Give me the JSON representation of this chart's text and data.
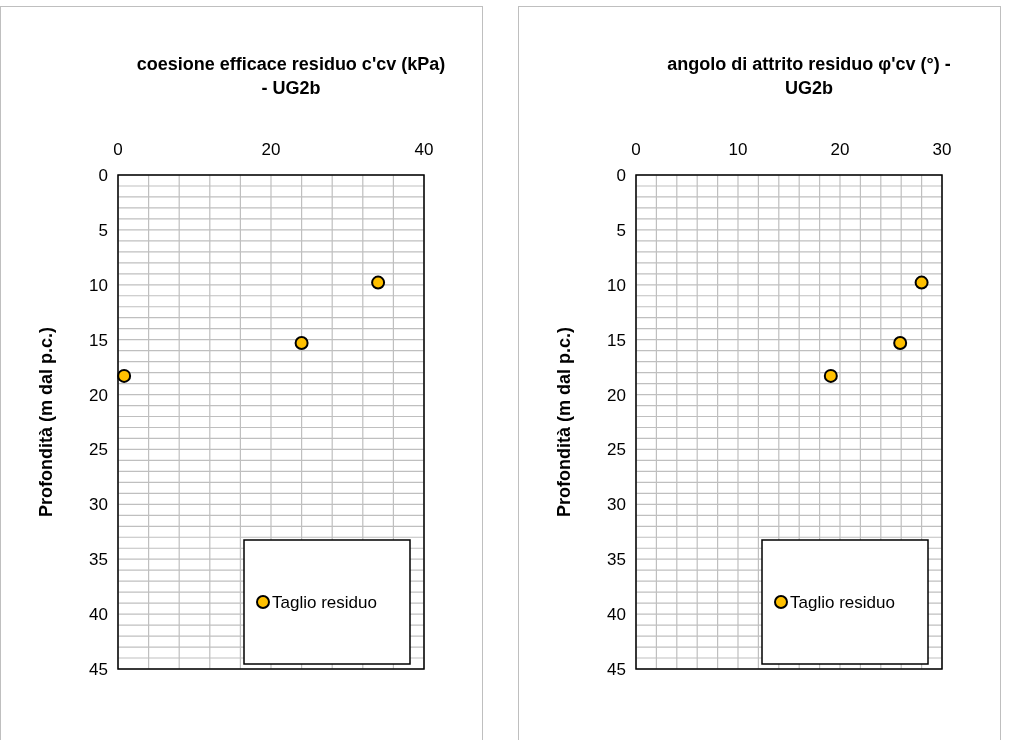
{
  "chart_data": [
    {
      "type": "scatter",
      "title": "coesione efficace residuo c'cv (kPa)\n- UG2b",
      "ylabel": "Profondità (m dal p.c.)",
      "series": [
        {
          "name": "Taglio residuo",
          "color": "#ffc000",
          "x": [
            34.0,
            24.0,
            0.8
          ],
          "values": [
            9.8,
            15.3,
            18.3
          ]
        }
      ],
      "xlim": [
        0,
        40
      ],
      "xticks": [
        0,
        {
          "value": 4,
          "label": null
        },
        {
          "value": 8,
          "label": null
        },
        {
          "value": 12,
          "label": null
        },
        {
          "value": 16,
          "label": null
        },
        20,
        {
          "value": 24,
          "label": null
        },
        {
          "value": 28,
          "label": null
        },
        {
          "value": 32,
          "label": null
        },
        {
          "value": 36,
          "label": null
        },
        40
      ],
      "ylim": [
        45,
        0
      ],
      "yticks": [
        0,
        {
          "value": 1,
          "label": null
        },
        {
          "value": 2,
          "label": null
        },
        {
          "value": 3,
          "label": null
        },
        {
          "value": 4,
          "label": null
        },
        5,
        {
          "value": 6,
          "label": null
        },
        {
          "value": 7,
          "label": null
        },
        {
          "value": 8,
          "label": null
        },
        {
          "value": 9,
          "label": null
        },
        10,
        {
          "value": 11,
          "label": null
        },
        {
          "value": 12,
          "label": null
        },
        {
          "value": 13,
          "label": null
        },
        {
          "value": 14,
          "label": null
        },
        15,
        {
          "value": 16,
          "label": null
        },
        {
          "value": 17,
          "label": null
        },
        {
          "value": 18,
          "label": null
        },
        {
          "value": 19,
          "label": null
        },
        20,
        {
          "value": 21,
          "label": null
        },
        {
          "value": 22,
          "label": null
        },
        {
          "value": 23,
          "label": null
        },
        {
          "value": 24,
          "label": null
        },
        25,
        {
          "value": 26,
          "label": null
        },
        {
          "value": 27,
          "label": null
        },
        {
          "value": 28,
          "label": null
        },
        {
          "value": 29,
          "label": null
        },
        30,
        {
          "value": 31,
          "label": null
        },
        {
          "value": 32,
          "label": null
        },
        {
          "value": 33,
          "label": null
        },
        {
          "value": 34,
          "label": null
        },
        35,
        {
          "value": 36,
          "label": null
        },
        {
          "value": 37,
          "label": null
        },
        {
          "value": 38,
          "label": null
        },
        {
          "value": 39,
          "label": null
        },
        40,
        {
          "value": 41,
          "label": null
        },
        {
          "value": 42,
          "label": null
        },
        {
          "value": 43,
          "label": null
        },
        {
          "value": 44,
          "label": null
        },
        45
      ],
      "grid": true,
      "legend": "bottom right",
      "marker": "circle"
    },
    {
      "type": "scatter",
      "title": "angolo di attrito residuo φ'cv (°) -\nUG2b",
      "ylabel": "Profondità (m dal p.c.)",
      "series": [
        {
          "name": "Taglio residuo",
          "color": "#ffc000",
          "x": [
            28.0,
            25.9,
            19.1
          ],
          "values": [
            9.8,
            15.3,
            18.3
          ]
        }
      ],
      "xlim": [
        0,
        30
      ],
      "xticks": [
        0,
        {
          "value": 2,
          "label": null
        },
        {
          "value": 4,
          "label": null
        },
        {
          "value": 6,
          "label": null
        },
        {
          "value": 8,
          "label": null
        },
        10,
        {
          "value": 12,
          "label": null
        },
        {
          "value": 14,
          "label": null
        },
        {
          "value": 16,
          "label": null
        },
        {
          "value": 18,
          "label": null
        },
        20,
        {
          "value": 22,
          "label": null
        },
        {
          "value": 24,
          "label": null
        },
        {
          "value": 26,
          "label": null
        },
        {
          "value": 28,
          "label": null
        },
        30
      ],
      "ylim": [
        45,
        0
      ],
      "yticks": [
        0,
        {
          "value": 1,
          "label": null
        },
        {
          "value": 2,
          "label": null
        },
        {
          "value": 3,
          "label": null
        },
        {
          "value": 4,
          "label": null
        },
        5,
        {
          "value": 6,
          "label": null
        },
        {
          "value": 7,
          "label": null
        },
        {
          "value": 8,
          "label": null
        },
        {
          "value": 9,
          "label": null
        },
        10,
        {
          "value": 11,
          "label": null
        },
        {
          "value": 12,
          "label": null
        },
        {
          "value": 13,
          "label": null
        },
        {
          "value": 14,
          "label": null
        },
        15,
        {
          "value": 16,
          "label": null
        },
        {
          "value": 17,
          "label": null
        },
        {
          "value": 18,
          "label": null
        },
        {
          "value": 19,
          "label": null
        },
        20,
        {
          "value": 21,
          "label": null
        },
        {
          "value": 22,
          "label": null
        },
        {
          "value": 23,
          "label": null
        },
        {
          "value": 24,
          "label": null
        },
        25,
        {
          "value": 26,
          "label": null
        },
        {
          "value": 27,
          "label": null
        },
        {
          "value": 28,
          "label": null
        },
        {
          "value": 29,
          "label": null
        },
        30,
        {
          "value": 31,
          "label": null
        },
        {
          "value": 32,
          "label": null
        },
        {
          "value": 33,
          "label": null
        },
        {
          "value": 34,
          "label": null
        },
        35,
        {
          "value": 36,
          "label": null
        },
        {
          "value": 37,
          "label": null
        },
        {
          "value": 38,
          "label": null
        },
        {
          "value": 39,
          "label": null
        },
        40,
        {
          "value": 41,
          "label": null
        },
        {
          "value": 42,
          "label": null
        },
        {
          "value": 43,
          "label": null
        },
        {
          "value": 44,
          "label": null
        },
        45
      ],
      "grid": true,
      "legend": "bottom right",
      "marker": "circle"
    }
  ]
}
